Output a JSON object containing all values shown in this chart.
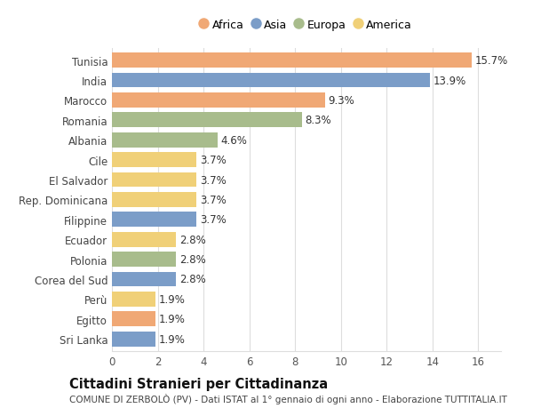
{
  "categories": [
    "Tunisia",
    "India",
    "Marocco",
    "Romania",
    "Albania",
    "Cile",
    "El Salvador",
    "Rep. Dominicana",
    "Filippine",
    "Ecuador",
    "Polonia",
    "Corea del Sud",
    "Perù",
    "Egitto",
    "Sri Lanka"
  ],
  "values": [
    15.7,
    13.9,
    9.3,
    8.3,
    4.6,
    3.7,
    3.7,
    3.7,
    3.7,
    2.8,
    2.8,
    2.8,
    1.9,
    1.9,
    1.9
  ],
  "continents": [
    "Africa",
    "Asia",
    "Africa",
    "Europa",
    "Europa",
    "America",
    "America",
    "America",
    "Asia",
    "America",
    "Europa",
    "Asia",
    "America",
    "Africa",
    "Asia"
  ],
  "colors": {
    "Africa": "#F0A875",
    "Asia": "#7B9DC8",
    "Europa": "#A8BC8C",
    "America": "#F0D078"
  },
  "legend_order": [
    "Africa",
    "Asia",
    "Europa",
    "America"
  ],
  "title": "Cittadini Stranieri per Cittadinanza",
  "subtitle": "COMUNE DI ZERBOLÒ (PV) - Dati ISTAT al 1° gennaio di ogni anno - Elaborazione TUTTITALIA.IT",
  "xlim": [
    0,
    17
  ],
  "xticks": [
    0,
    2,
    4,
    6,
    8,
    10,
    12,
    14,
    16
  ],
  "bar_height": 0.75,
  "background_color": "#ffffff",
  "grid_color": "#dddddd",
  "label_fontsize": 8.5,
  "value_fontsize": 8.5,
  "title_fontsize": 10.5,
  "subtitle_fontsize": 7.5
}
